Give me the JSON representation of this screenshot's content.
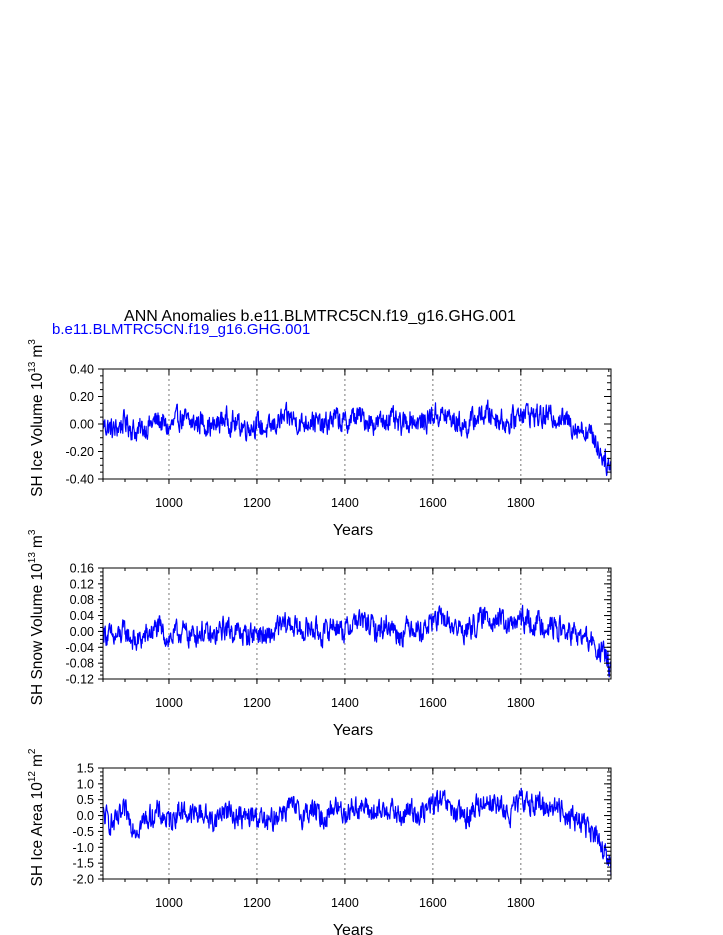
{
  "title": "ANN Anomalies b.e11.BLMTRC5CN.f19_g16.GHG.001",
  "subtitle": "b.e11.BLMTRC5CN.f19_g16.GHG.001",
  "colors": {
    "series": "#0000ff",
    "axis": "#000000",
    "grid": "#777777",
    "subtitle": "#0000ff"
  },
  "chart_data": [
    {
      "type": "line",
      "ylabel_main": "SH Ice Volume 10",
      "ylabel_exp": "13",
      "ylabel_unit": "m",
      "ylabel_unit_exp": "3",
      "xlabel": "Years",
      "xlim": [
        850,
        2005
      ],
      "ylim": [
        -0.4,
        0.4
      ],
      "yticks": [
        -0.4,
        -0.2,
        0.0,
        0.2,
        0.4
      ],
      "ytick_labels": [
        "-0.40",
        "-0.20",
        "0.00",
        "0.20",
        "0.40"
      ],
      "xticks": [
        1000,
        1200,
        1400,
        1600,
        1800
      ],
      "xtick_labels": [
        "1000",
        "1200",
        "1400",
        "1600",
        "1800"
      ],
      "grid": "vertical dashed at labeled years",
      "x": [
        850,
        875,
        900,
        925,
        950,
        975,
        1000,
        1025,
        1050,
        1075,
        1100,
        1125,
        1150,
        1175,
        1200,
        1225,
        1250,
        1275,
        1300,
        1325,
        1350,
        1375,
        1400,
        1425,
        1450,
        1475,
        1500,
        1525,
        1550,
        1575,
        1600,
        1625,
        1650,
        1675,
        1700,
        1725,
        1750,
        1775,
        1800,
        1825,
        1850,
        1875,
        1900,
        1925,
        1950,
        1960,
        1970,
        1980,
        1990,
        2000,
        2005
      ],
      "y": [
        0.0,
        -0.05,
        0.02,
        -0.06,
        -0.02,
        0.03,
        -0.04,
        0.05,
        0.0,
        0.02,
        -0.03,
        0.04,
        0.0,
        -0.02,
        0.0,
        -0.05,
        0.02,
        0.05,
        0.0,
        0.04,
        -0.03,
        0.05,
        0.0,
        0.06,
        0.03,
        0.0,
        0.05,
        -0.02,
        0.04,
        0.0,
        0.07,
        0.06,
        0.02,
        -0.02,
        0.05,
        0.08,
        0.04,
        0.0,
        0.1,
        0.07,
        0.05,
        0.06,
        0.03,
        -0.02,
        -0.05,
        -0.08,
        -0.12,
        -0.2,
        -0.25,
        -0.3,
        -0.34
      ]
    },
    {
      "type": "line",
      "ylabel_main": "SH Snow Volume 10",
      "ylabel_exp": "13",
      "ylabel_unit": "m",
      "ylabel_unit_exp": "3",
      "xlabel": "Years",
      "xlim": [
        850,
        2005
      ],
      "ylim": [
        -0.12,
        0.16
      ],
      "yticks": [
        -0.12,
        -0.08,
        -0.04,
        0.0,
        0.04,
        0.08,
        0.12,
        0.16
      ],
      "ytick_labels": [
        "-0.12",
        "-0.08",
        "-0.04",
        "0.00",
        "0.04",
        "0.08",
        "0.12",
        "0.16"
      ],
      "xticks": [
        1000,
        1200,
        1400,
        1600,
        1800
      ],
      "xtick_labels": [
        "1000",
        "1200",
        "1400",
        "1600",
        "1800"
      ],
      "grid": "vertical dashed at labeled years",
      "x": [
        850,
        875,
        900,
        925,
        950,
        975,
        1000,
        1025,
        1050,
        1075,
        1100,
        1125,
        1150,
        1175,
        1200,
        1225,
        1250,
        1275,
        1300,
        1325,
        1350,
        1375,
        1400,
        1425,
        1450,
        1475,
        1500,
        1525,
        1550,
        1575,
        1600,
        1625,
        1650,
        1675,
        1700,
        1725,
        1750,
        1775,
        1800,
        1825,
        1850,
        1875,
        1900,
        1925,
        1950,
        1960,
        1970,
        1980,
        1990,
        2000,
        2005
      ],
      "y": [
        0.0,
        -0.02,
        0.0,
        -0.03,
        -0.01,
        0.01,
        -0.02,
        0.0,
        -0.01,
        0.0,
        -0.02,
        0.01,
        0.0,
        -0.01,
        0.0,
        -0.02,
        0.01,
        0.02,
        0.0,
        0.01,
        -0.01,
        0.02,
        0.0,
        0.03,
        0.02,
        0.0,
        0.02,
        -0.01,
        0.02,
        0.0,
        0.03,
        0.03,
        0.01,
        0.0,
        0.02,
        0.04,
        0.03,
        0.01,
        0.03,
        0.02,
        0.02,
        0.01,
        0.0,
        -0.01,
        -0.02,
        -0.03,
        -0.04,
        -0.05,
        -0.06,
        -0.08,
        -0.09
      ]
    },
    {
      "type": "line",
      "ylabel_main": "SH Ice Area 10",
      "ylabel_exp": "12",
      "ylabel_unit": "m",
      "ylabel_unit_exp": "2",
      "xlabel": "Years",
      "xlim": [
        850,
        2005
      ],
      "ylim": [
        -2.0,
        1.5
      ],
      "yticks": [
        -2.0,
        -1.5,
        -1.0,
        -0.5,
        0.0,
        0.5,
        1.0,
        1.5
      ],
      "ytick_labels": [
        "-2.0",
        "-1.5",
        "-1.0",
        "-0.5",
        "0.0",
        "0.5",
        "1.0",
        "1.5"
      ],
      "xticks": [
        1000,
        1200,
        1400,
        1600,
        1800
      ],
      "xtick_labels": [
        "1000",
        "1200",
        "1400",
        "1600",
        "1800"
      ],
      "grid": "vertical dashed at labeled years",
      "x": [
        850,
        875,
        900,
        925,
        950,
        975,
        1000,
        1025,
        1050,
        1075,
        1100,
        1125,
        1150,
        1175,
        1200,
        1225,
        1250,
        1275,
        1300,
        1325,
        1350,
        1375,
        1400,
        1425,
        1450,
        1475,
        1500,
        1525,
        1550,
        1575,
        1600,
        1625,
        1650,
        1675,
        1700,
        1725,
        1750,
        1775,
        1800,
        1825,
        1850,
        1875,
        1900,
        1925,
        1950,
        1960,
        1970,
        1980,
        1990,
        2000,
        2005
      ],
      "y": [
        0.0,
        -0.3,
        0.1,
        -0.4,
        -0.1,
        0.1,
        -0.2,
        0.2,
        0.0,
        0.1,
        -0.2,
        0.2,
        0.0,
        -0.1,
        0.0,
        -0.3,
        0.1,
        0.3,
        0.0,
        0.2,
        -0.1,
        0.3,
        0.1,
        0.3,
        0.2,
        0.0,
        0.3,
        -0.1,
        0.2,
        0.0,
        0.4,
        0.4,
        0.1,
        -0.1,
        0.3,
        0.5,
        0.3,
        0.0,
        0.5,
        0.4,
        0.3,
        0.3,
        0.1,
        -0.1,
        -0.3,
        -0.5,
        -0.7,
        -1.0,
        -1.2,
        -1.5,
        -1.7
      ]
    }
  ]
}
